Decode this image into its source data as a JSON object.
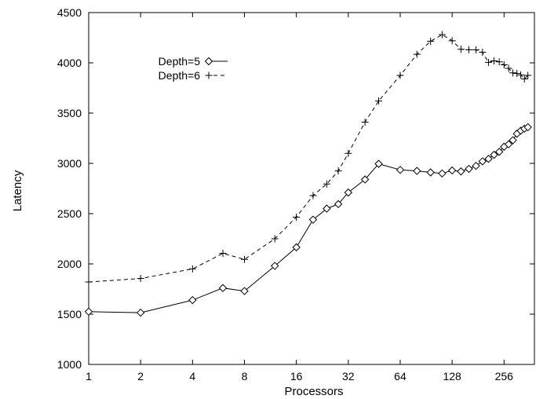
{
  "chart_data": {
    "type": "line",
    "title": "",
    "xlabel": "Processors",
    "ylabel": "Latency",
    "x_scale": "log2",
    "xlim": [
      1,
      384
    ],
    "ylim": [
      1000,
      4500
    ],
    "x_ticks": [
      1,
      2,
      4,
      8,
      16,
      32,
      64,
      128,
      256
    ],
    "x_tick_labels": [
      "1",
      "2",
      "4",
      "8",
      "16",
      "32",
      "64",
      "128",
      "256"
    ],
    "y_ticks": [
      1000,
      1500,
      2000,
      2500,
      3000,
      3500,
      4000,
      4500
    ],
    "y_tick_labels": [
      "1000",
      "1500",
      "2000",
      "2500",
      "3000",
      "3500",
      "4000",
      "4500"
    ],
    "grid": false,
    "legend_position": "top-left",
    "series": [
      {
        "name": "Depth=5",
        "line_style": "solid",
        "marker": "diamond",
        "x": [
          1,
          2,
          4,
          6,
          8,
          12,
          16,
          20,
          24,
          28,
          32,
          40,
          48,
          64,
          80,
          96,
          112,
          128,
          144,
          160,
          176,
          192,
          208,
          224,
          240,
          256,
          272,
          288,
          304,
          320,
          336,
          352
        ],
        "y": [
          1525,
          1515,
          1640,
          1760,
          1730,
          1980,
          2165,
          2440,
          2550,
          2595,
          2710,
          2840,
          2995,
          2935,
          2925,
          2910,
          2900,
          2930,
          2920,
          2945,
          2975,
          3020,
          3045,
          3085,
          3115,
          3165,
          3190,
          3230,
          3295,
          3325,
          3345,
          3360
        ]
      },
      {
        "name": "Depth=6",
        "line_style": "dashed",
        "marker": "plus",
        "x": [
          1,
          2,
          4,
          6,
          8,
          12,
          16,
          20,
          24,
          28,
          32,
          40,
          48,
          64,
          80,
          96,
          112,
          128,
          144,
          160,
          176,
          192,
          208,
          224,
          240,
          256,
          272,
          288,
          304,
          320,
          336,
          352
        ],
        "y": [
          1820,
          1855,
          1950,
          2105,
          2045,
          2250,
          2465,
          2680,
          2795,
          2925,
          3100,
          3410,
          3620,
          3875,
          4085,
          4215,
          4280,
          4220,
          4135,
          4130,
          4130,
          4105,
          4005,
          4020,
          4010,
          3980,
          3945,
          3900,
          3895,
          3880,
          3840,
          3875
        ]
      }
    ]
  }
}
